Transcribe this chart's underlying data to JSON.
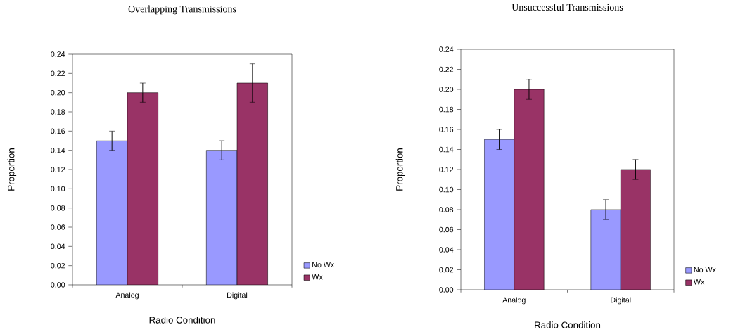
{
  "chart_data": [
    {
      "type": "bar",
      "title": "Overlapping Transmissions",
      "xlabel": "Radio Condition",
      "ylabel": "Proportion",
      "categories": [
        "Analog",
        "Digital"
      ],
      "series": [
        {
          "name": "No Wx",
          "color": "#9999ff",
          "values": [
            0.15,
            0.14
          ],
          "errors": [
            0.01,
            0.01
          ]
        },
        {
          "name": "Wx",
          "color": "#993366",
          "values": [
            0.2,
            0.21
          ],
          "errors": [
            0.01,
            0.02
          ]
        }
      ],
      "ylim": [
        0,
        0.24
      ],
      "yticks": [
        {
          "value": 0,
          "label": "0.00"
        },
        {
          "value": 0.02,
          "label": "0.02"
        },
        {
          "value": 0.04,
          "label": "0.04"
        },
        {
          "value": 0.06,
          "label": "0.06"
        },
        {
          "value": 0.08,
          "label": "0.08"
        },
        {
          "value": 0.1,
          "label": "0.10"
        },
        {
          "value": 0.12,
          "label": "0.12"
        },
        {
          "value": 0.14,
          "label": "0.14"
        },
        {
          "value": 0.16,
          "label": "0.16"
        },
        {
          "value": 0.18,
          "label": "0.18"
        },
        {
          "value": 0.2,
          "label": "0.20"
        },
        {
          "value": 0.22,
          "label": "0.22"
        },
        {
          "value": 0.24,
          "label": "0.24"
        }
      ],
      "legend": "right"
    },
    {
      "type": "bar",
      "title": "Unsuccessful Transmissions",
      "xlabel": "Radio Condition",
      "ylabel": "Proportion",
      "categories": [
        "Analog",
        "Digital"
      ],
      "series": [
        {
          "name": "No Wx",
          "color": "#9999ff",
          "values": [
            0.15,
            0.08
          ],
          "errors": [
            0.01,
            0.01
          ]
        },
        {
          "name": "Wx",
          "color": "#993366",
          "values": [
            0.2,
            0.12
          ],
          "errors": [
            0.01,
            0.01
          ]
        }
      ],
      "ylim": [
        0,
        0.24
      ],
      "yticks": [
        {
          "value": 0,
          "label": "0.00"
        },
        {
          "value": 0.02,
          "label": "0.02"
        },
        {
          "value": 0.04,
          "label": "0.04"
        },
        {
          "value": 0.06,
          "label": "0.06"
        },
        {
          "value": 0.08,
          "label": "0.08"
        },
        {
          "value": 0.1,
          "label": "0.10"
        },
        {
          "value": 0.12,
          "label": "0.12"
        },
        {
          "value": 0.14,
          "label": "0.14"
        },
        {
          "value": 0.16,
          "label": "0.16"
        },
        {
          "value": 0.18,
          "label": "0.18"
        },
        {
          "value": 0.2,
          "label": "0.20"
        },
        {
          "value": 0.22,
          "label": "0.22"
        },
        {
          "value": 0.24,
          "label": "0.24"
        }
      ],
      "legend": "right"
    }
  ]
}
